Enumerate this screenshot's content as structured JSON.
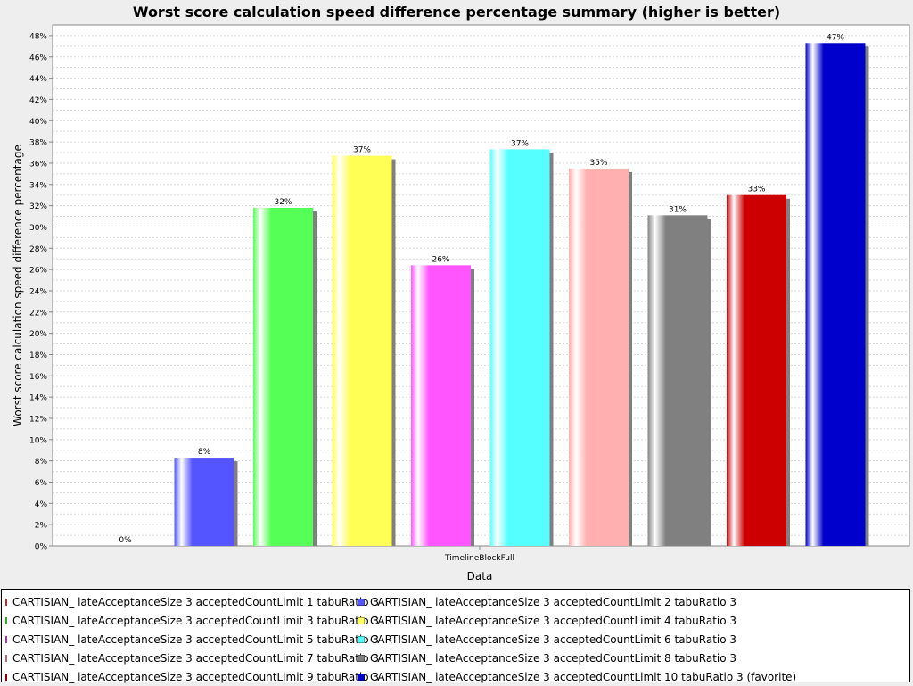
{
  "chart_data": {
    "type": "bar",
    "title": "Worst score calculation speed difference percentage summary (higher is better)",
    "xlabel": "Data",
    "ylabel": "Worst score calculation speed difference percentage",
    "categories": [
      "TimelineBlockFull"
    ],
    "ylim": [
      0,
      49
    ],
    "yticks": [
      "0%",
      "2%",
      "4%",
      "6%",
      "8%",
      "10%",
      "12%",
      "14%",
      "16%",
      "18%",
      "20%",
      "22%",
      "24%",
      "26%",
      "28%",
      "30%",
      "32%",
      "34%",
      "36%",
      "38%",
      "40%",
      "42%",
      "44%",
      "46%",
      "48%"
    ],
    "grid": true,
    "legend_position": "bottom",
    "series": [
      {
        "name": "CARTISIAN_ lateAcceptanceSize 3 acceptedCountLimit 1 tabuRatio 3",
        "values": [
          0
        ],
        "label": "0%",
        "color": "#ff5555"
      },
      {
        "name": "CARTISIAN_ lateAcceptanceSize 3 acceptedCountLimit 2 tabuRatio 3",
        "values": [
          8.3
        ],
        "label": "8%",
        "color": "#5555ff"
      },
      {
        "name": "CARTISIAN_ lateAcceptanceSize 3 acceptedCountLimit 3 tabuRatio 3",
        "values": [
          31.8
        ],
        "label": "32%",
        "color": "#55ff55"
      },
      {
        "name": "CARTISIAN_ lateAcceptanceSize 3 acceptedCountLimit 4 tabuRatio 3",
        "values": [
          36.7
        ],
        "label": "37%",
        "color": "#ffff55"
      },
      {
        "name": "CARTISIAN_ lateAcceptanceSize 3 acceptedCountLimit 5 tabuRatio 3",
        "values": [
          26.4
        ],
        "label": "26%",
        "color": "#ff55ff"
      },
      {
        "name": "CARTISIAN_ lateAcceptanceSize 3 acceptedCountLimit 6 tabuRatio 3",
        "values": [
          37.3
        ],
        "label": "37%",
        "color": "#55ffff"
      },
      {
        "name": "CARTISIAN_ lateAcceptanceSize 3 acceptedCountLimit 7 tabuRatio 3",
        "values": [
          35.5
        ],
        "label": "35%",
        "color": "#ffafaf"
      },
      {
        "name": "CARTISIAN_ lateAcceptanceSize 3 acceptedCountLimit 8 tabuRatio 3",
        "values": [
          31.1
        ],
        "label": "31%",
        "color": "#808080"
      },
      {
        "name": "CARTISIAN_ lateAcceptanceSize 3 acceptedCountLimit 9 tabuRatio 3",
        "values": [
          33.0
        ],
        "label": "33%",
        "color": "#cc0000"
      },
      {
        "name": "CARTISIAN_ lateAcceptanceSize 3 acceptedCountLimit 10 tabuRatio 3 (favorite)",
        "values": [
          47.3
        ],
        "label": "47%",
        "color": "#0000cc"
      }
    ]
  }
}
